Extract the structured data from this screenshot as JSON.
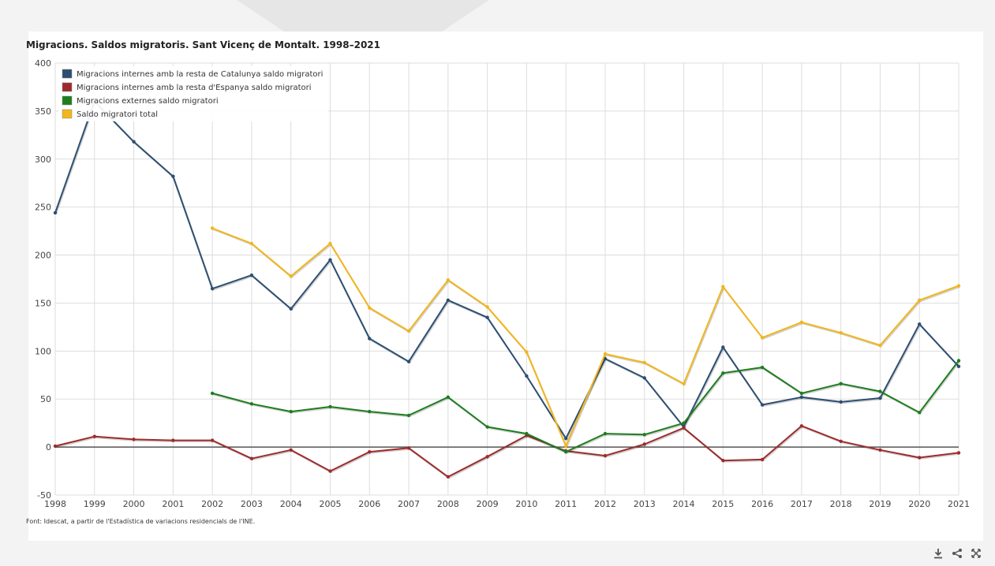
{
  "header": {
    "title": "Migracions. Saldos migratoris. Sant Vicenç de Montalt. 1998–2021"
  },
  "source": {
    "text": "Font: Idescat, a partir de l'Estadística de variacions residencials de l'INE."
  },
  "toolbar": {
    "icons": [
      "download-icon",
      "share-icon",
      "fullscreen-icon"
    ]
  },
  "chart_data": {
    "type": "line",
    "title": "Migracions. Saldos migratoris. Sant Vicenç de Montalt. 1998–2021",
    "xlabel": "",
    "ylabel": "",
    "x": [
      "1998",
      "1999",
      "2000",
      "2001",
      "2002",
      "2003",
      "2004",
      "2005",
      "2006",
      "2007",
      "2008",
      "2009",
      "2010",
      "2011",
      "2012",
      "2013",
      "2014",
      "2015",
      "2016",
      "2017",
      "2018",
      "2019",
      "2020",
      "2021"
    ],
    "ylim": [
      -50,
      400
    ],
    "yticks": [
      -50,
      0,
      50,
      100,
      150,
      200,
      250,
      300,
      350,
      400
    ],
    "grid": true,
    "legend_position": "top-left",
    "series": [
      {
        "name": "Migracions internes amb la resta de Catalunya saldo migratori",
        "color": "#2d4e72",
        "values": [
          244,
          360,
          318,
          282,
          165,
          179,
          144,
          195,
          113,
          89,
          153,
          135,
          74,
          9,
          92,
          72,
          21,
          104,
          44,
          52,
          47,
          51,
          128,
          84
        ]
      },
      {
        "name": "Migracions internes amb la resta d'Espanya saldo migratori",
        "color": "#9e2b2b",
        "values": [
          1,
          11,
          8,
          7,
          7,
          -12,
          -3,
          -25,
          -5,
          -1,
          -31,
          -10,
          12,
          -4,
          -9,
          3,
          20,
          -14,
          -13,
          22,
          6,
          -3,
          -11,
          -6
        ]
      },
      {
        "name": "Migracions externes saldo migratori",
        "color": "#1e7d1e",
        "values": [
          null,
          null,
          null,
          null,
          56,
          45,
          37,
          42,
          37,
          33,
          52,
          21,
          14,
          -5,
          14,
          13,
          25,
          77,
          83,
          56,
          66,
          58,
          36,
          90
        ]
      },
      {
        "name": "Saldo migratori total",
        "color": "#f2b51c",
        "values": [
          null,
          null,
          null,
          null,
          228,
          212,
          178,
          212,
          145,
          121,
          174,
          146,
          99,
          1,
          97,
          88,
          66,
          167,
          114,
          130,
          119,
          106,
          153,
          168
        ]
      }
    ]
  }
}
